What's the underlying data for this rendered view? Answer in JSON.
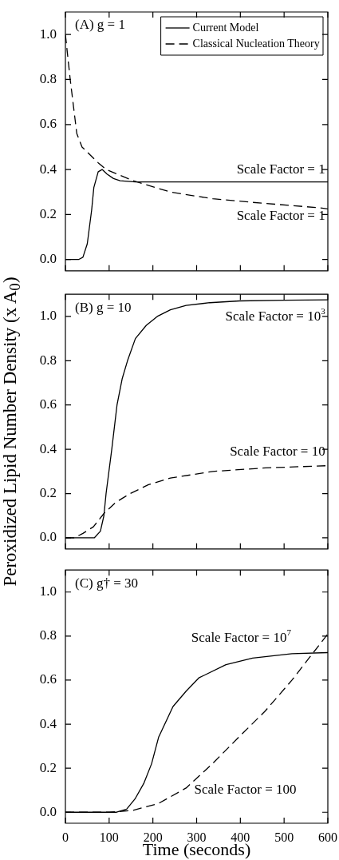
{
  "chart_data": [
    {
      "type": "line",
      "title": "(A) g = 1",
      "xlim": [
        0,
        600
      ],
      "xticks": [
        0,
        100,
        200,
        300,
        400,
        500,
        600
      ],
      "ylim": [
        -0.05,
        1.1
      ],
      "yticks": [
        {
          "value": 0,
          "label": "0.0"
        },
        {
          "value": 0.2,
          "label": "0.2"
        },
        {
          "value": 0.4,
          "label": "0.4"
        },
        {
          "value": 0.6,
          "label": "0.6"
        },
        {
          "value": 0.8,
          "label": "0.8"
        },
        {
          "value": 1,
          "label": "1.0"
        }
      ],
      "tick_labels": "y",
      "legend": "top right",
      "series": [
        {
          "name": "Current Model",
          "color": "#000000",
          "line_style": "solid",
          "x": [
            0,
            30,
            40,
            50,
            60,
            65,
            75,
            84,
            95,
            110,
            125,
            160,
            600
          ],
          "values": [
            0,
            0,
            0.01,
            0.07,
            0.22,
            0.32,
            0.39,
            0.4,
            0.38,
            0.36,
            0.35,
            0.345,
            0.345
          ]
        },
        {
          "name": "Classical Nucleation Theory",
          "color": "#000000",
          "line_style": "dashed",
          "x": [
            0,
            11,
            26,
            38,
            75,
            93,
            155,
            240,
            337,
            428,
            580,
            600
          ],
          "values": [
            1.0,
            0.8,
            0.56,
            0.5,
            0.43,
            0.4,
            0.35,
            0.3,
            0.27,
            0.254,
            0.23,
            0.225
          ]
        }
      ],
      "annotations": [
        "Scale Factor = 1",
        "Scale Factor = 1"
      ]
    },
    {
      "type": "line",
      "title": "(B) g = 10",
      "ylabel": "Peroxidized Lipid Number Density (x A$_{0}$)",
      "xlim": [
        0,
        600
      ],
      "xticks": [
        0,
        100,
        200,
        300,
        400,
        500,
        600
      ],
      "ylim": [
        -0.05,
        1.1
      ],
      "yticks": [
        {
          "value": 0,
          "label": "0.0"
        },
        {
          "value": 0.2,
          "label": "0.2"
        },
        {
          "value": 0.4,
          "label": "0.4"
        },
        {
          "value": 0.6,
          "label": "0.6"
        },
        {
          "value": 0.8,
          "label": "0.8"
        },
        {
          "value": 1,
          "label": "1.0"
        }
      ],
      "tick_labels": "y",
      "series": [
        {
          "color": "#000000",
          "line_style": "solid",
          "x": [
            0,
            66,
            80,
            88,
            93,
            106,
            118,
            130,
            142,
            160,
            185,
            210,
            240,
            276,
            330,
            398,
            500,
            600
          ],
          "values": [
            0,
            0,
            0.03,
            0.1,
            0.2,
            0.4,
            0.6,
            0.72,
            0.8,
            0.9,
            0.96,
            1.0,
            1.03,
            1.05,
            1.062,
            1.07,
            1.073,
            1.075
          ]
        },
        {
          "color": "#000000",
          "line_style": "dashed",
          "x": [
            0,
            20,
            40,
            64,
            88,
            115,
            148,
            190,
            240,
            337,
            458,
            600
          ],
          "values": [
            0,
            0,
            0.02,
            0.05,
            0.11,
            0.16,
            0.2,
            0.24,
            0.27,
            0.3,
            0.316,
            0.326
          ]
        }
      ],
      "annotations": [
        "Scale Factor = 10$^{3}$",
        "Scale Factor = 10"
      ]
    },
    {
      "type": "line",
      "title": "(C) g† = 30",
      "xlabel": "Time (seconds)",
      "xlim": [
        0,
        600
      ],
      "xticks": [
        0,
        100,
        200,
        300,
        400,
        500,
        600
      ],
      "ylim": [
        -0.05,
        1.1
      ],
      "yticks": [
        {
          "value": 0,
          "label": "0.0"
        },
        {
          "value": 0.2,
          "label": "0.2"
        },
        {
          "value": 0.4,
          "label": "0.4"
        },
        {
          "value": 0.6,
          "label": "0.6"
        },
        {
          "value": 0.8,
          "label": "0.8"
        },
        {
          "value": 1,
          "label": "1.0"
        }
      ],
      "series": [
        {
          "color": "#000000",
          "line_style": "solid",
          "x": [
            0,
            117,
            140,
            159,
            179,
            197,
            213,
            246,
            276,
            305,
            367,
            428,
            518,
            600
          ],
          "values": [
            0,
            0,
            0.014,
            0.06,
            0.13,
            0.22,
            0.34,
            0.48,
            0.55,
            0.61,
            0.67,
            0.7,
            0.72,
            0.725
          ]
        },
        {
          "color": "#000000",
          "line_style": "dashed",
          "x": [
            0,
            100,
            153,
            213,
            276,
            336,
            396,
            457,
            518,
            600
          ],
          "values": [
            0,
            0,
            0.008,
            0.04,
            0.11,
            0.22,
            0.34,
            0.46,
            0.6,
            0.81
          ]
        }
      ],
      "annotations": [
        "Scale Factor = 10$^{7}$",
        "Scale Factor = 100"
      ]
    }
  ]
}
